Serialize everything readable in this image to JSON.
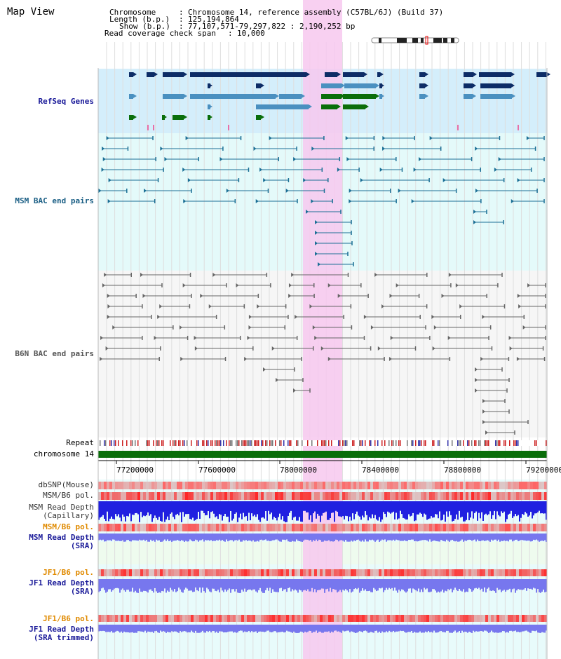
{
  "title": "Map View",
  "info": {
    "chromosome_label": "Chromosome",
    "chromosome_value": "Chromosome 14, reference assembly (C57BL/6J) (Build 37)",
    "length_label": "Length (b.p.)",
    "length_value": "125,194,864",
    "show_label": "Show (b.p.)",
    "show_value": "77,107,571-79,297,822 : 2,190,252 bp",
    "coverage_label": "Read coverage check span",
    "coverage_value": "10,000"
  },
  "tracks": {
    "refseq": "RefSeq Genes",
    "msm_bac": "MSM BAC end pairs",
    "b6n_bac": "B6N BAC end pairs",
    "repeat": "Repeat",
    "chromosome": "chromosome 14",
    "dbsnp": "dbSNP(Mouse)",
    "msm_b6_pol_1": "MSM/B6 pol.",
    "msm_depth_cap_1": "MSM Read Depth",
    "msm_depth_cap_2": "(Capillary)",
    "msm_b6_pol_2": "MSM/B6 pol.",
    "msm_depth_sra_1": "MSM Read Depth",
    "msm_depth_sra_2": "(SRA)",
    "jf1_b6_pol_1": "JF1/B6 pol.",
    "jf1_depth_1": "JF1 Read Depth",
    "jf1_depth_2": "(SRA)",
    "jf1_b6_pol_2": "JF1/B6 pol.",
    "jf1_trim_1": "JF1 Read Depth",
    "jf1_trim_2": "(SRA trimmed)"
  },
  "axis": {
    "ticks": [
      "77200000",
      "77600000",
      "78000000",
      "78400000",
      "78800000",
      "79200000"
    ]
  },
  "colors": {
    "refseq_label": "#1a1a99",
    "msm_label": "#1b5f85",
    "b6n_label": "#555555",
    "orange_label": "#e08a00",
    "blue_label": "#1a1a99",
    "highlight": "#f7c8ef",
    "refseq_bg": "#d4eefb",
    "msm_bg": "#e4fafa",
    "chrom_green": "#0a6e0a",
    "depth_blue": "#2020e0",
    "depth_light": "#7777ee"
  }
}
